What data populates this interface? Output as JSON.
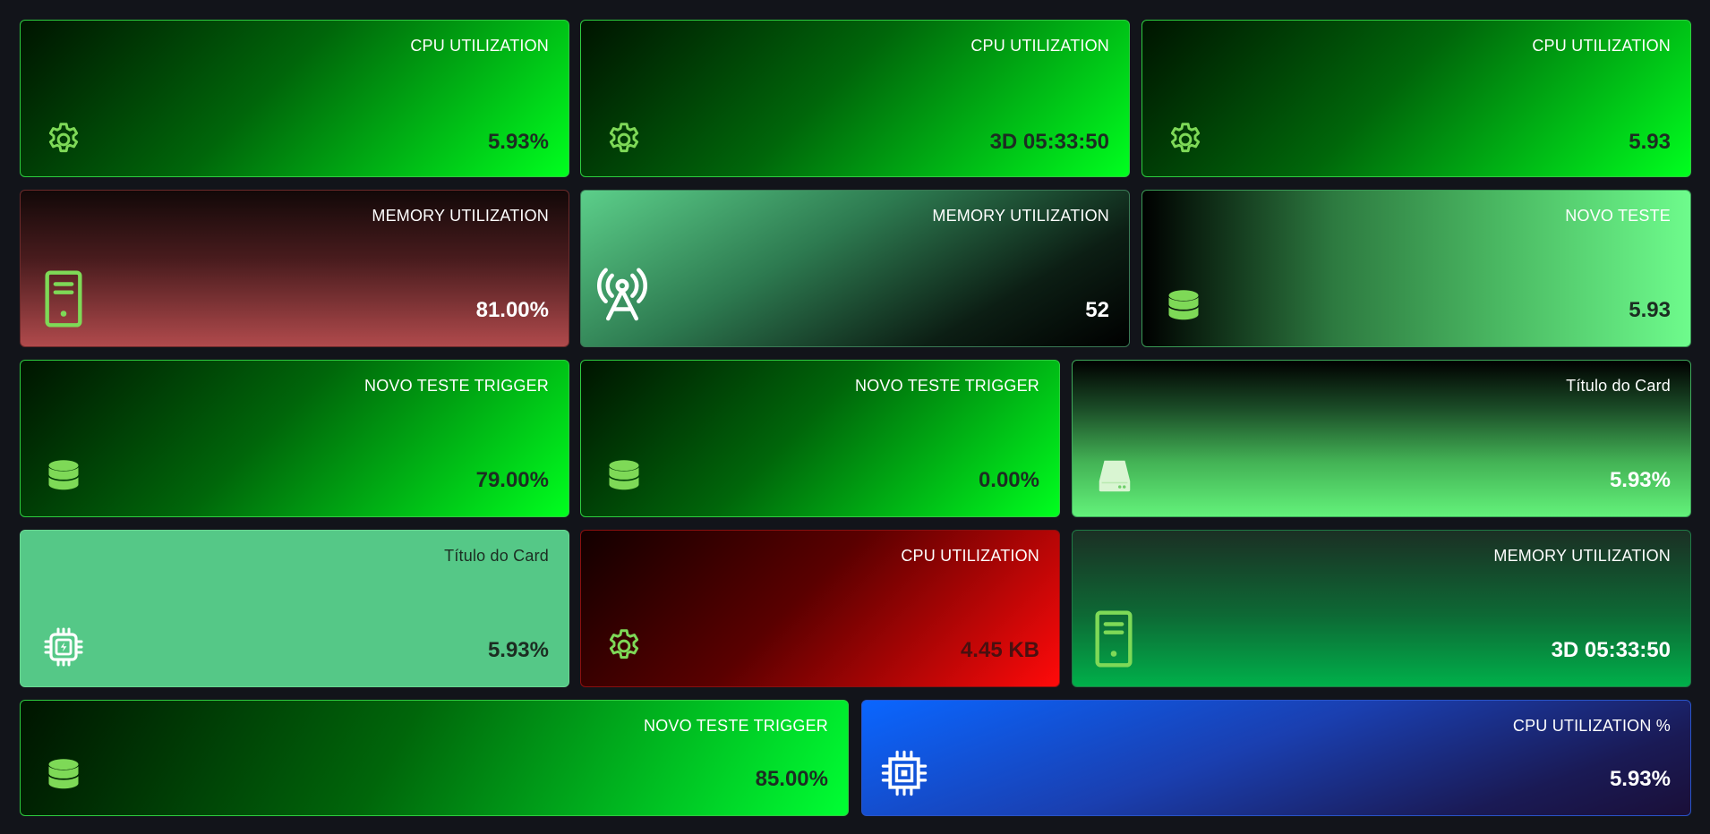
{
  "colors": {
    "background": "#12141a",
    "icon_green": "#7ed957",
    "icon_white": "#ffffff",
    "text_light": "#ffffff",
    "text_dark": "#1c2d22"
  },
  "cards": [
    {
      "title": "CPU UTILIZATION",
      "value": "5.93%",
      "icon": "gear-icon"
    },
    {
      "title": "CPU UTILIZATION",
      "value": "3D 05:33:50",
      "icon": "gear-icon"
    },
    {
      "title": "CPU UTILIZATION",
      "value": "5.93",
      "icon": "gear-icon"
    },
    {
      "title": "MEMORY UTILIZATION",
      "value": "81.00%",
      "icon": "server-icon"
    },
    {
      "title": "MEMORY UTILIZATION",
      "value": "52",
      "icon": "antenna-tower-icon"
    },
    {
      "title": "NOVO TESTE",
      "value": "5.93",
      "icon": "database-icon"
    },
    {
      "title": "NOVO TESTE TRIGGER",
      "value": "79.00%",
      "icon": "database-icon"
    },
    {
      "title": "NOVO TESTE TRIGGER",
      "value": "0.00%",
      "icon": "database-icon"
    },
    {
      "title": "Título do Card",
      "value": "5.93%",
      "icon": "hard-drive-icon"
    },
    {
      "title": "Título do Card",
      "value": "5.93%",
      "icon": "cpu-power-icon"
    },
    {
      "title": "CPU UTILIZATION",
      "value": "4.45 KB",
      "icon": "gear-icon"
    },
    {
      "title": "MEMORY UTILIZATION",
      "value": "3D 05:33:50",
      "icon": "server-icon"
    },
    {
      "title": "NOVO TESTE TRIGGER",
      "value": "85.00%",
      "icon": "database-icon"
    },
    {
      "title": "CPU UTILIZATION %",
      "value": "5.93%",
      "icon": "cpu-chip-icon"
    }
  ]
}
